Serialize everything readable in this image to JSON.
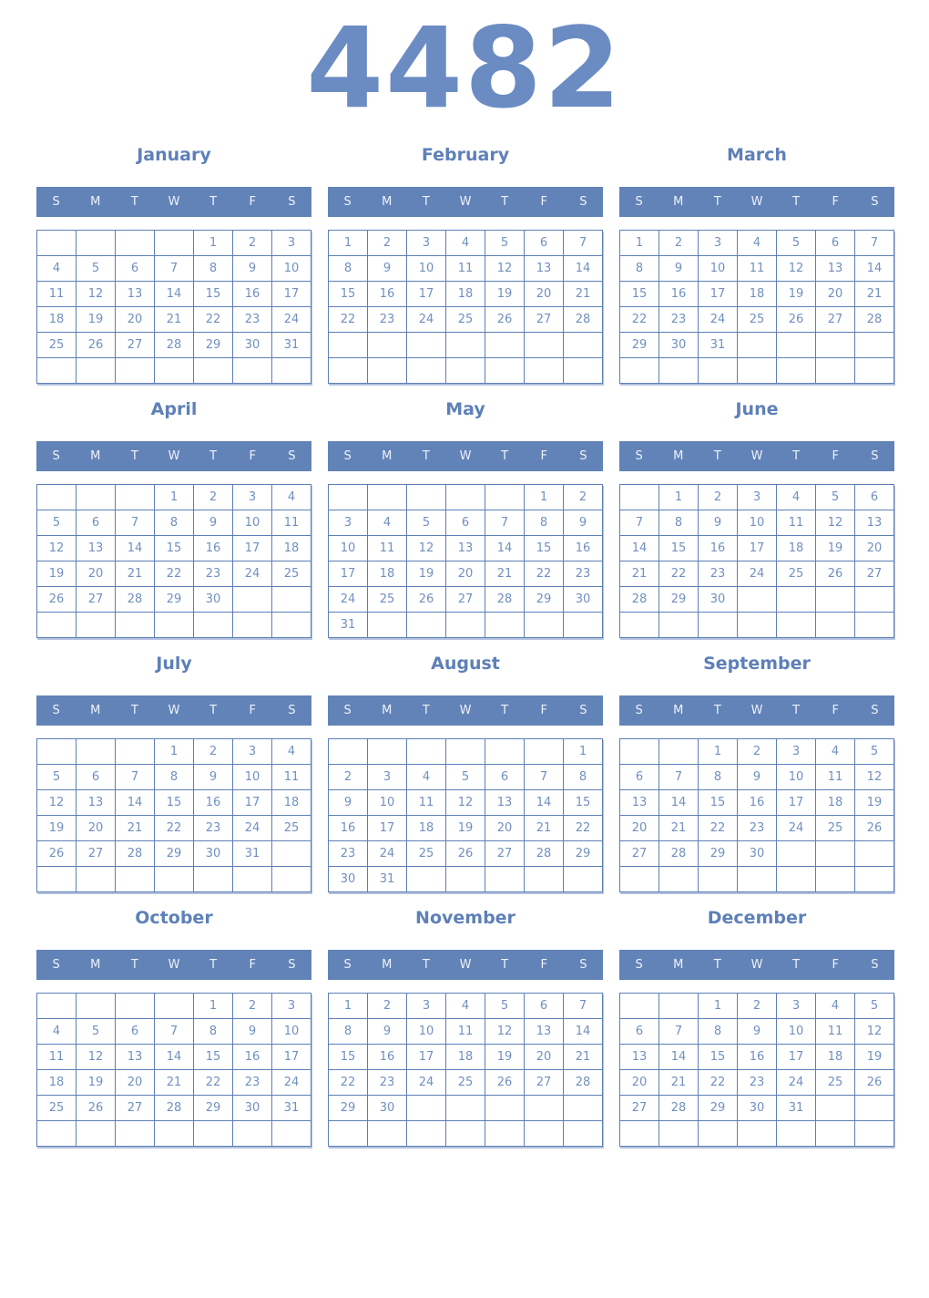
{
  "year": "4482",
  "weekdays": [
    "S",
    "M",
    "T",
    "W",
    "T",
    "F",
    "S"
  ],
  "months": [
    {
      "name": "January",
      "weeks": [
        [
          "",
          "",
          "",
          "",
          "1",
          "2",
          "3"
        ],
        [
          "4",
          "5",
          "6",
          "7",
          "8",
          "9",
          "10"
        ],
        [
          "11",
          "12",
          "13",
          "14",
          "15",
          "16",
          "17"
        ],
        [
          "18",
          "19",
          "20",
          "21",
          "22",
          "23",
          "24"
        ],
        [
          "25",
          "26",
          "27",
          "28",
          "29",
          "30",
          "31"
        ],
        [
          "",
          "",
          "",
          "",
          "",
          "",
          ""
        ]
      ]
    },
    {
      "name": "February",
      "weeks": [
        [
          "1",
          "2",
          "3",
          "4",
          "5",
          "6",
          "7"
        ],
        [
          "8",
          "9",
          "10",
          "11",
          "12",
          "13",
          "14"
        ],
        [
          "15",
          "16",
          "17",
          "18",
          "19",
          "20",
          "21"
        ],
        [
          "22",
          "23",
          "24",
          "25",
          "26",
          "27",
          "28"
        ],
        [
          "",
          "",
          "",
          "",
          "",
          "",
          ""
        ],
        [
          "",
          "",
          "",
          "",
          "",
          "",
          ""
        ]
      ]
    },
    {
      "name": "March",
      "weeks": [
        [
          "1",
          "2",
          "3",
          "4",
          "5",
          "6",
          "7"
        ],
        [
          "8",
          "9",
          "10",
          "11",
          "12",
          "13",
          "14"
        ],
        [
          "15",
          "16",
          "17",
          "18",
          "19",
          "20",
          "21"
        ],
        [
          "22",
          "23",
          "24",
          "25",
          "26",
          "27",
          "28"
        ],
        [
          "29",
          "30",
          "31",
          "",
          "",
          "",
          ""
        ],
        [
          "",
          "",
          "",
          "",
          "",
          "",
          ""
        ]
      ]
    },
    {
      "name": "April",
      "weeks": [
        [
          "",
          "",
          "",
          "1",
          "2",
          "3",
          "4"
        ],
        [
          "5",
          "6",
          "7",
          "8",
          "9",
          "10",
          "11"
        ],
        [
          "12",
          "13",
          "14",
          "15",
          "16",
          "17",
          "18"
        ],
        [
          "19",
          "20",
          "21",
          "22",
          "23",
          "24",
          "25"
        ],
        [
          "26",
          "27",
          "28",
          "29",
          "30",
          "",
          ""
        ],
        [
          "",
          "",
          "",
          "",
          "",
          "",
          ""
        ]
      ]
    },
    {
      "name": "May",
      "weeks": [
        [
          "",
          "",
          "",
          "",
          "",
          "1",
          "2"
        ],
        [
          "3",
          "4",
          "5",
          "6",
          "7",
          "8",
          "9"
        ],
        [
          "10",
          "11",
          "12",
          "13",
          "14",
          "15",
          "16"
        ],
        [
          "17",
          "18",
          "19",
          "20",
          "21",
          "22",
          "23"
        ],
        [
          "24",
          "25",
          "26",
          "27",
          "28",
          "29",
          "30"
        ],
        [
          "31",
          "",
          "",
          "",
          "",
          "",
          ""
        ]
      ]
    },
    {
      "name": "June",
      "weeks": [
        [
          "",
          "1",
          "2",
          "3",
          "4",
          "5",
          "6"
        ],
        [
          "7",
          "8",
          "9",
          "10",
          "11",
          "12",
          "13"
        ],
        [
          "14",
          "15",
          "16",
          "17",
          "18",
          "19",
          "20"
        ],
        [
          "21",
          "22",
          "23",
          "24",
          "25",
          "26",
          "27"
        ],
        [
          "28",
          "29",
          "30",
          "",
          "",
          "",
          ""
        ],
        [
          "",
          "",
          "",
          "",
          "",
          "",
          ""
        ]
      ]
    },
    {
      "name": "July",
      "weeks": [
        [
          "",
          "",
          "",
          "1",
          "2",
          "3",
          "4"
        ],
        [
          "5",
          "6",
          "7",
          "8",
          "9",
          "10",
          "11"
        ],
        [
          "12",
          "13",
          "14",
          "15",
          "16",
          "17",
          "18"
        ],
        [
          "19",
          "20",
          "21",
          "22",
          "23",
          "24",
          "25"
        ],
        [
          "26",
          "27",
          "28",
          "29",
          "30",
          "31",
          ""
        ],
        [
          "",
          "",
          "",
          "",
          "",
          "",
          ""
        ]
      ]
    },
    {
      "name": "August",
      "weeks": [
        [
          "",
          "",
          "",
          "",
          "",
          "",
          "1"
        ],
        [
          "2",
          "3",
          "4",
          "5",
          "6",
          "7",
          "8"
        ],
        [
          "9",
          "10",
          "11",
          "12",
          "13",
          "14",
          "15"
        ],
        [
          "16",
          "17",
          "18",
          "19",
          "20",
          "21",
          "22"
        ],
        [
          "23",
          "24",
          "25",
          "26",
          "27",
          "28",
          "29"
        ],
        [
          "30",
          "31",
          "",
          "",
          "",
          "",
          ""
        ]
      ]
    },
    {
      "name": "September",
      "weeks": [
        [
          "",
          "",
          "1",
          "2",
          "3",
          "4",
          "5"
        ],
        [
          "6",
          "7",
          "8",
          "9",
          "10",
          "11",
          "12"
        ],
        [
          "13",
          "14",
          "15",
          "16",
          "17",
          "18",
          "19"
        ],
        [
          "20",
          "21",
          "22",
          "23",
          "24",
          "25",
          "26"
        ],
        [
          "27",
          "28",
          "29",
          "30",
          "",
          "",
          ""
        ],
        [
          "",
          "",
          "",
          "",
          "",
          "",
          ""
        ]
      ]
    },
    {
      "name": "October",
      "weeks": [
        [
          "",
          "",
          "",
          "",
          "1",
          "2",
          "3"
        ],
        [
          "4",
          "5",
          "6",
          "7",
          "8",
          "9",
          "10"
        ],
        [
          "11",
          "12",
          "13",
          "14",
          "15",
          "16",
          "17"
        ],
        [
          "18",
          "19",
          "20",
          "21",
          "22",
          "23",
          "24"
        ],
        [
          "25",
          "26",
          "27",
          "28",
          "29",
          "30",
          "31"
        ],
        [
          "",
          "",
          "",
          "",
          "",
          "",
          ""
        ]
      ]
    },
    {
      "name": "November",
      "weeks": [
        [
          "1",
          "2",
          "3",
          "4",
          "5",
          "6",
          "7"
        ],
        [
          "8",
          "9",
          "10",
          "11",
          "12",
          "13",
          "14"
        ],
        [
          "15",
          "16",
          "17",
          "18",
          "19",
          "20",
          "21"
        ],
        [
          "22",
          "23",
          "24",
          "25",
          "26",
          "27",
          "28"
        ],
        [
          "29",
          "30",
          "",
          "",
          "",
          "",
          ""
        ],
        [
          "",
          "",
          "",
          "",
          "",
          "",
          ""
        ]
      ]
    },
    {
      "name": "December",
      "weeks": [
        [
          "",
          "",
          "1",
          "2",
          "3",
          "4",
          "5"
        ],
        [
          "6",
          "7",
          "8",
          "9",
          "10",
          "11",
          "12"
        ],
        [
          "13",
          "14",
          "15",
          "16",
          "17",
          "18",
          "19"
        ],
        [
          "20",
          "21",
          "22",
          "23",
          "24",
          "25",
          "26"
        ],
        [
          "27",
          "28",
          "29",
          "30",
          "31",
          "",
          ""
        ],
        [
          "",
          "",
          "",
          "",
          "",
          "",
          ""
        ]
      ]
    }
  ],
  "colors": {
    "year_text": "#6b8cc3",
    "month_text": "#5e80b8",
    "band": "#6283b8",
    "band_text": "#eef2f8",
    "date_text": "#7190bf",
    "border": "#5d7fb8"
  }
}
